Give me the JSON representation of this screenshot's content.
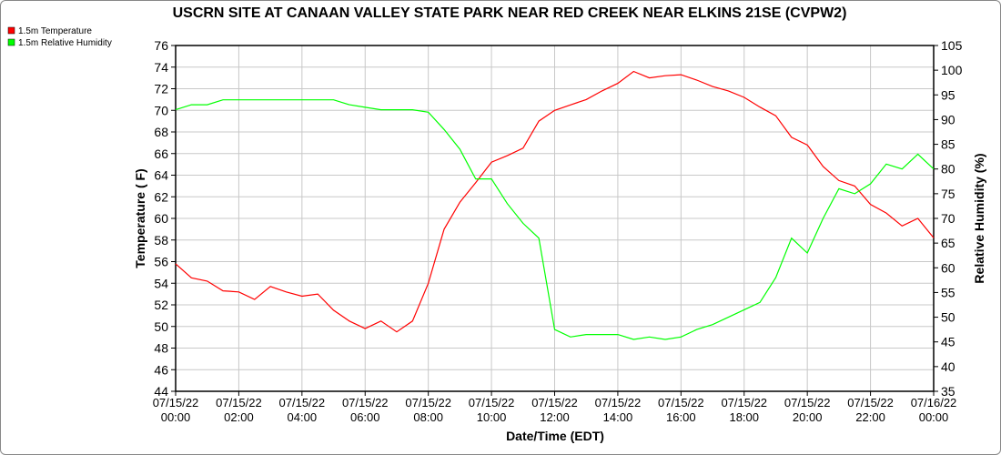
{
  "chart_data": {
    "type": "line",
    "title": "USCRN SITE AT CANAAN VALLEY STATE PARK NEAR RED CREEK NEAR ELKINS 21SE (CVPW2)",
    "xlabel": "Date/Time (EDT)",
    "ylabel": "Temperature ( F)",
    "y2label": "Relative Humidity (%)",
    "ylim": [
      44,
      76
    ],
    "y2lim": [
      35,
      105
    ],
    "yticks": [
      44,
      46,
      48,
      50,
      52,
      54,
      56,
      58,
      60,
      62,
      64,
      66,
      68,
      70,
      72,
      74,
      76
    ],
    "y2ticks": [
      35,
      40,
      45,
      50,
      55,
      60,
      65,
      70,
      75,
      80,
      85,
      90,
      95,
      100,
      105
    ],
    "xticks": [
      {
        "date": "07/15/22",
        "time": "00:00"
      },
      {
        "date": "07/15/22",
        "time": "02:00"
      },
      {
        "date": "07/15/22",
        "time": "04:00"
      },
      {
        "date": "07/15/22",
        "time": "06:00"
      },
      {
        "date": "07/15/22",
        "time": "08:00"
      },
      {
        "date": "07/15/22",
        "time": "10:00"
      },
      {
        "date": "07/15/22",
        "time": "12:00"
      },
      {
        "date": "07/15/22",
        "time": "14:00"
      },
      {
        "date": "07/15/22",
        "time": "16:00"
      },
      {
        "date": "07/15/22",
        "time": "18:00"
      },
      {
        "date": "07/15/22",
        "time": "20:00"
      },
      {
        "date": "07/15/22",
        "time": "22:00"
      },
      {
        "date": "07/16/22",
        "time": "00:00"
      }
    ],
    "grid": true,
    "legend_position": "top-left",
    "x_hours": [
      0,
      0.5,
      1,
      1.5,
      2,
      2.5,
      3,
      3.5,
      4,
      4.5,
      5,
      5.5,
      6,
      6.5,
      7,
      7.5,
      8,
      8.5,
      9,
      9.5,
      10,
      10.5,
      11,
      11.5,
      12,
      12.5,
      13,
      13.5,
      14,
      14.5,
      15,
      15.5,
      16,
      16.5,
      17,
      17.5,
      18,
      18.5,
      19,
      19.5,
      20,
      20.5,
      21,
      21.5,
      22,
      22.5,
      23,
      23.5,
      24
    ],
    "series": [
      {
        "name": "1.5m Temperature",
        "axis": "left",
        "color": "#ff0000",
        "values": [
          55.8,
          54.5,
          54.2,
          53.3,
          53.2,
          52.5,
          53.7,
          53.2,
          52.8,
          53.0,
          51.5,
          50.5,
          49.8,
          50.5,
          49.5,
          50.5,
          54,
          59,
          61.5,
          63.3,
          65.2,
          65.8,
          66.5,
          69,
          70,
          70.5,
          71,
          71.8,
          72.5,
          73.6,
          73,
          73.2,
          73.3,
          72.8,
          72.2,
          71.8,
          71.2,
          70.3,
          69.5,
          67.5,
          66.8,
          64.8,
          63.5,
          63,
          61.3,
          60.5,
          59.3,
          60,
          58.2
        ]
      },
      {
        "name": "1.5m Relative Humidity",
        "axis": "right",
        "color": "#00ff00",
        "values": [
          92,
          93,
          93,
          94,
          94,
          94,
          94,
          94,
          94,
          94,
          94,
          93,
          92.5,
          92,
          92,
          92,
          91.5,
          88,
          84,
          78,
          78,
          73,
          69,
          66,
          47.5,
          46,
          46.5,
          46.5,
          46.5,
          45.5,
          46,
          45.5,
          46,
          47.5,
          48.5,
          50,
          51.5,
          53,
          58,
          66,
          63,
          70,
          76,
          75,
          77,
          81,
          80,
          83,
          80
        ]
      }
    ]
  }
}
